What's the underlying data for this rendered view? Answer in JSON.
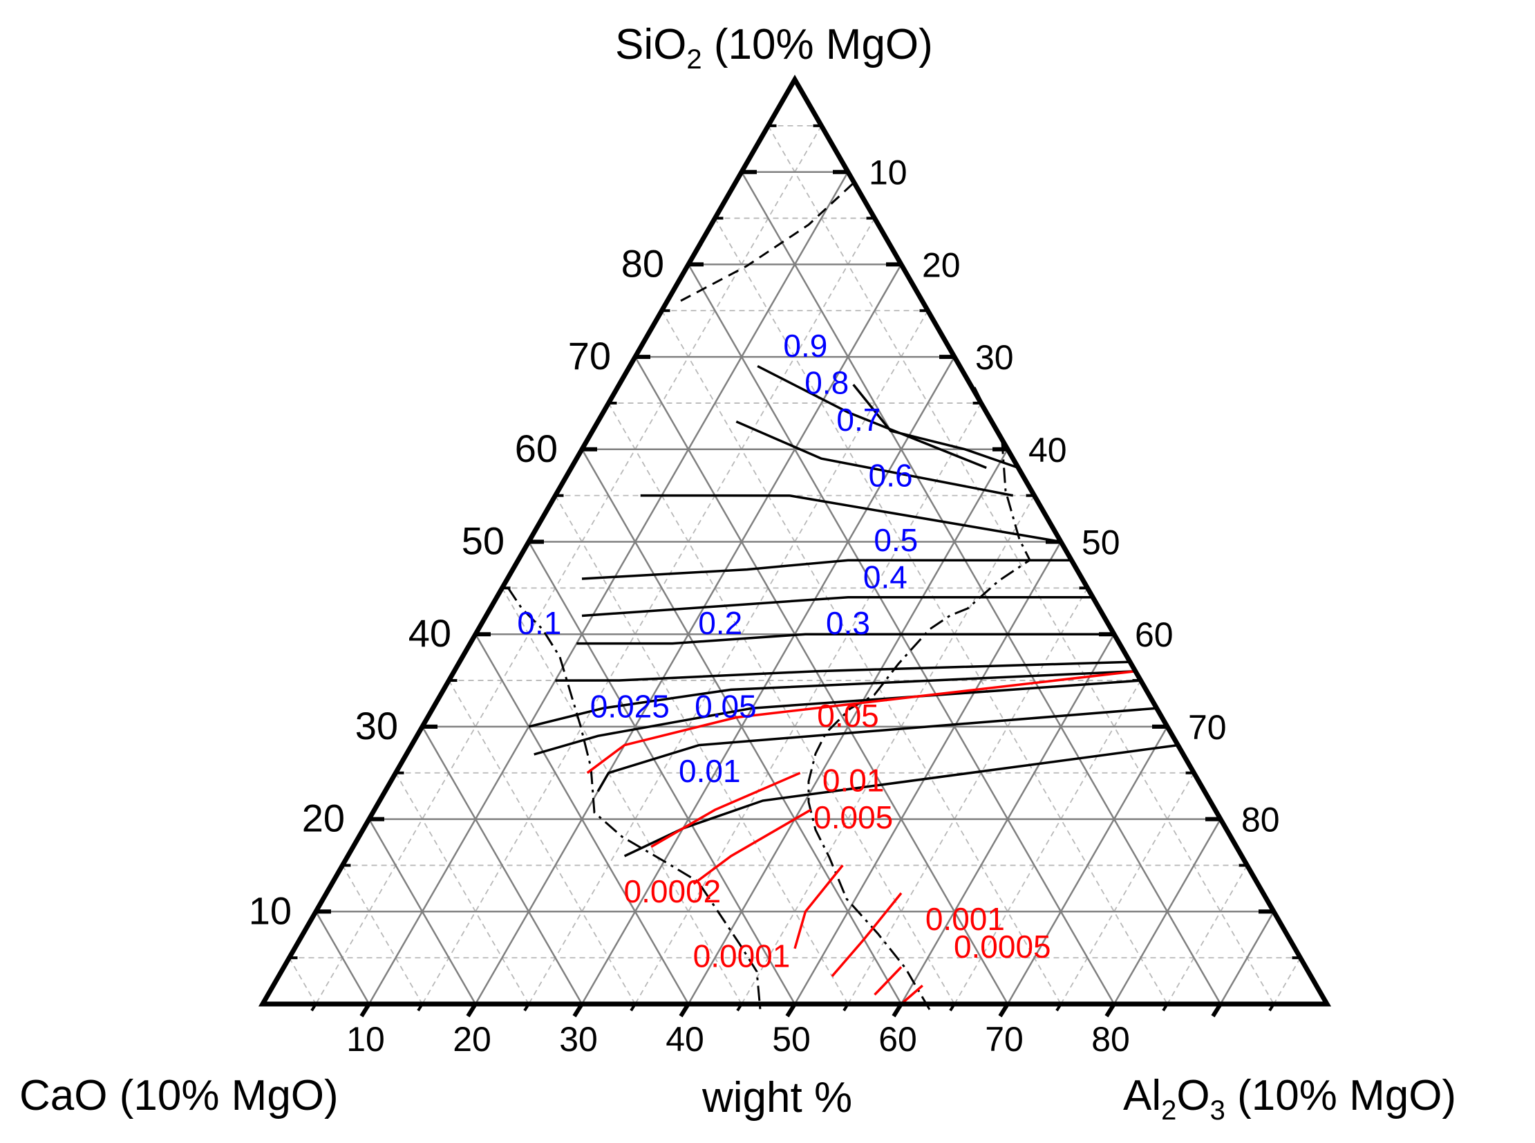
{
  "chart_data": {
    "type": "ternary",
    "title": "",
    "units": "wight %",
    "axes": {
      "top": {
        "label": "SiO",
        "sub": "2",
        "suffix": " (10% MgO)"
      },
      "left": {
        "label": "CaO (10% MgO)"
      },
      "right": {
        "label": "Al",
        "sub1": "2",
        "mid": "O",
        "sub2": "3",
        "suffix": " (10% MgO)"
      }
    },
    "ticks": {
      "left": [
        "10",
        "20",
        "30",
        "40",
        "50",
        "60",
        "70",
        "80"
      ],
      "right": [
        "10",
        "20",
        "30",
        "40",
        "50",
        "60",
        "70",
        "80"
      ],
      "bottom": [
        "10",
        "20",
        "30",
        "40",
        "50",
        "60",
        "70",
        "80"
      ]
    },
    "grid": {
      "major_step": 10,
      "minor_step": 5,
      "on": true
    },
    "iso_lines_black": [
      {
        "label": "0.9",
        "points": [
          [
            67,
            11,
            22
          ],
          [
            62,
            10,
            28
          ],
          [
            60,
            4,
            36
          ],
          [
            58,
            0,
            42
          ]
        ]
      },
      {
        "label": "0.8",
        "points": [
          [
            69,
            19,
            12
          ],
          [
            64,
            13,
            23
          ],
          [
            58,
            3,
            39
          ]
        ]
      },
      {
        "label": "0.7",
        "points": [
          [
            63,
            24,
            13
          ],
          [
            59,
            18,
            23
          ],
          [
            55,
            2,
            43
          ]
        ]
      },
      {
        "label": "0.6",
        "points": [
          [
            55,
            37,
            8
          ],
          [
            55,
            23,
            22
          ],
          [
            50,
            0,
            50
          ]
        ]
      },
      {
        "label": "0.5",
        "points": [
          [
            46,
            47,
            7
          ],
          [
            47,
            31,
            22
          ],
          [
            48,
            21,
            31
          ],
          [
            48,
            0,
            52
          ]
        ]
      },
      {
        "label": "0.4",
        "points": [
          [
            42,
            49,
            9
          ],
          [
            43,
            36,
            21
          ],
          [
            44,
            23,
            33
          ],
          [
            44,
            0,
            56
          ]
        ]
      },
      {
        "label": "0.3",
        "points": [
          [
            39,
            51,
            10
          ],
          [
            39,
            42,
            19
          ],
          [
            40,
            29,
            31
          ],
          [
            40,
            0,
            60
          ]
        ]
      },
      {
        "label": "0.2",
        "points": [
          [
            35,
            55,
            10
          ],
          [
            35,
            49,
            16
          ],
          [
            36,
            30,
            34
          ],
          [
            37,
            0,
            63
          ]
        ]
      },
      {
        "label": "0.1",
        "points": [
          [
            30,
            60,
            10
          ],
          [
            32,
            52,
            16
          ],
          [
            34,
            39,
            27
          ],
          [
            36,
            0,
            64
          ]
        ]
      },
      {
        "label": "0.05",
        "points": [
          [
            27,
            61,
            12
          ],
          [
            29,
            54,
            17
          ],
          [
            32,
            38,
            30
          ],
          [
            35,
            0,
            65
          ]
        ]
      },
      {
        "label": "0.025",
        "points": [
          [
            23,
            57,
            20
          ],
          [
            25,
            55,
            20
          ],
          [
            28,
            45,
            27
          ],
          [
            32,
            0,
            68
          ]
        ]
      },
      {
        "label": "0.01",
        "points": [
          [
            16,
            58,
            26
          ],
          [
            19,
            51,
            30
          ],
          [
            22,
            42,
            36
          ],
          [
            28,
            0,
            72
          ]
        ]
      }
    ],
    "iso_lines_red": [
      {
        "label": "0.05",
        "points": [
          [
            25,
            57,
            18
          ],
          [
            28,
            52,
            20
          ],
          [
            31,
            40,
            29
          ],
          [
            36,
            0,
            64
          ]
        ]
      },
      {
        "label": "0.01",
        "points": [
          [
            17,
            55,
            28
          ],
          [
            21,
            47,
            32
          ],
          [
            25,
            37,
            38
          ]
        ]
      },
      {
        "label": "0.005",
        "points": [
          [
            13,
            53,
            34
          ],
          [
            16,
            48,
            36
          ],
          [
            21,
            38,
            41
          ]
        ]
      },
      {
        "label": "0.001",
        "points": [
          [
            6,
            47,
            47
          ],
          [
            10,
            44,
            46
          ],
          [
            15,
            38,
            47
          ]
        ]
      },
      {
        "label": "0.0005",
        "points": [
          [
            3,
            45,
            52
          ],
          [
            7,
            40,
            53
          ],
          [
            12,
            34,
            54
          ]
        ]
      },
      {
        "label": "0.0002",
        "points": [
          [
            1,
            42,
            57
          ],
          [
            4,
            38,
            58
          ]
        ]
      },
      {
        "label": "0.0001",
        "points": [
          [
            0,
            40,
            60
          ],
          [
            2,
            37,
            61
          ]
        ]
      }
    ],
    "labels_blue": [
      {
        "text": "0.9",
        "pos": [
          70,
          14,
          16
        ]
      },
      {
        "text": "0.8",
        "pos": [
          66,
          14,
          20
        ]
      },
      {
        "text": "0.7",
        "pos": [
          62,
          13,
          25
        ]
      },
      {
        "text": "0.6",
        "pos": [
          56,
          13,
          31
        ]
      },
      {
        "text": "0.5",
        "pos": [
          49,
          16,
          35
        ]
      },
      {
        "text": "0.4",
        "pos": [
          45,
          19,
          36
        ]
      },
      {
        "text": "0.3",
        "pos": [
          40,
          25,
          35
        ]
      },
      {
        "text": "0.2",
        "pos": [
          40,
          37,
          23
        ]
      },
      {
        "text": "0.1",
        "pos": [
          40,
          54,
          6
        ]
      },
      {
        "text": "0.025",
        "pos": [
          31,
          50,
          19
        ]
      },
      {
        "text": "0.05",
        "pos": [
          31,
          41,
          28
        ]
      },
      {
        "text": "0.01",
        "pos": [
          24,
          46,
          30
        ]
      }
    ],
    "labels_red": [
      {
        "text": "0.05",
        "pos": [
          30,
          30,
          40
        ]
      },
      {
        "text": "0.01",
        "pos": [
          23,
          33,
          44
        ]
      },
      {
        "text": "0.005",
        "pos": [
          19,
          35,
          46
        ]
      },
      {
        "text": "0.0002",
        "pos": [
          11,
          56,
          33
        ]
      },
      {
        "text": "0.001",
        "pos": [
          8,
          30,
          62
        ]
      },
      {
        "text": "0.0005",
        "pos": [
          5,
          28,
          67
        ]
      },
      {
        "text": "0.0001",
        "pos": [
          4,
          53,
          43
        ]
      }
    ]
  }
}
